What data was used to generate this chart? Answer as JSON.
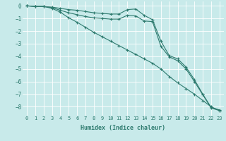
{
  "xlabel": "Humidex (Indice chaleur)",
  "ylabel": "",
  "bg_color": "#c8eaea",
  "line_color": "#2d7a6e",
  "grid_color": "#ffffff",
  "x": [
    0,
    1,
    2,
    3,
    4,
    5,
    6,
    7,
    8,
    9,
    10,
    11,
    12,
    13,
    14,
    15,
    16,
    17,
    18,
    19,
    20,
    21,
    22,
    23
  ],
  "line1": [
    0.0,
    -0.05,
    -0.05,
    -0.1,
    -0.2,
    -0.3,
    -0.35,
    -0.45,
    -0.55,
    -0.6,
    -0.65,
    -0.65,
    -0.3,
    -0.25,
    -0.75,
    -1.1,
    -2.8,
    -3.95,
    -4.2,
    -4.85,
    -5.85,
    -7.0,
    -8.05,
    -8.25
  ],
  "line2": [
    0.0,
    -0.05,
    -0.05,
    -0.15,
    -0.35,
    -0.55,
    -0.7,
    -0.85,
    -0.95,
    -1.0,
    -1.05,
    -1.05,
    -0.75,
    -0.8,
    -1.2,
    -1.25,
    -3.2,
    -4.05,
    -4.35,
    -5.0,
    -6.0,
    -7.05,
    -8.1,
    -8.3
  ],
  "line3": [
    0.0,
    -0.05,
    -0.05,
    -0.2,
    -0.5,
    -0.95,
    -1.3,
    -1.7,
    -2.1,
    -2.45,
    -2.8,
    -3.15,
    -3.5,
    -3.85,
    -4.2,
    -4.55,
    -5.0,
    -5.6,
    -6.1,
    -6.55,
    -7.0,
    -7.5,
    -8.0,
    -8.3
  ],
  "ylim": [
    -8.7,
    0.35
  ],
  "xlim": [
    -0.5,
    23.5
  ],
  "yticks": [
    0,
    -1,
    -2,
    -3,
    -4,
    -5,
    -6,
    -7,
    -8
  ],
  "xticks": [
    0,
    1,
    2,
    3,
    4,
    5,
    6,
    7,
    8,
    9,
    10,
    11,
    12,
    13,
    14,
    15,
    16,
    17,
    18,
    19,
    20,
    21,
    22,
    23
  ]
}
